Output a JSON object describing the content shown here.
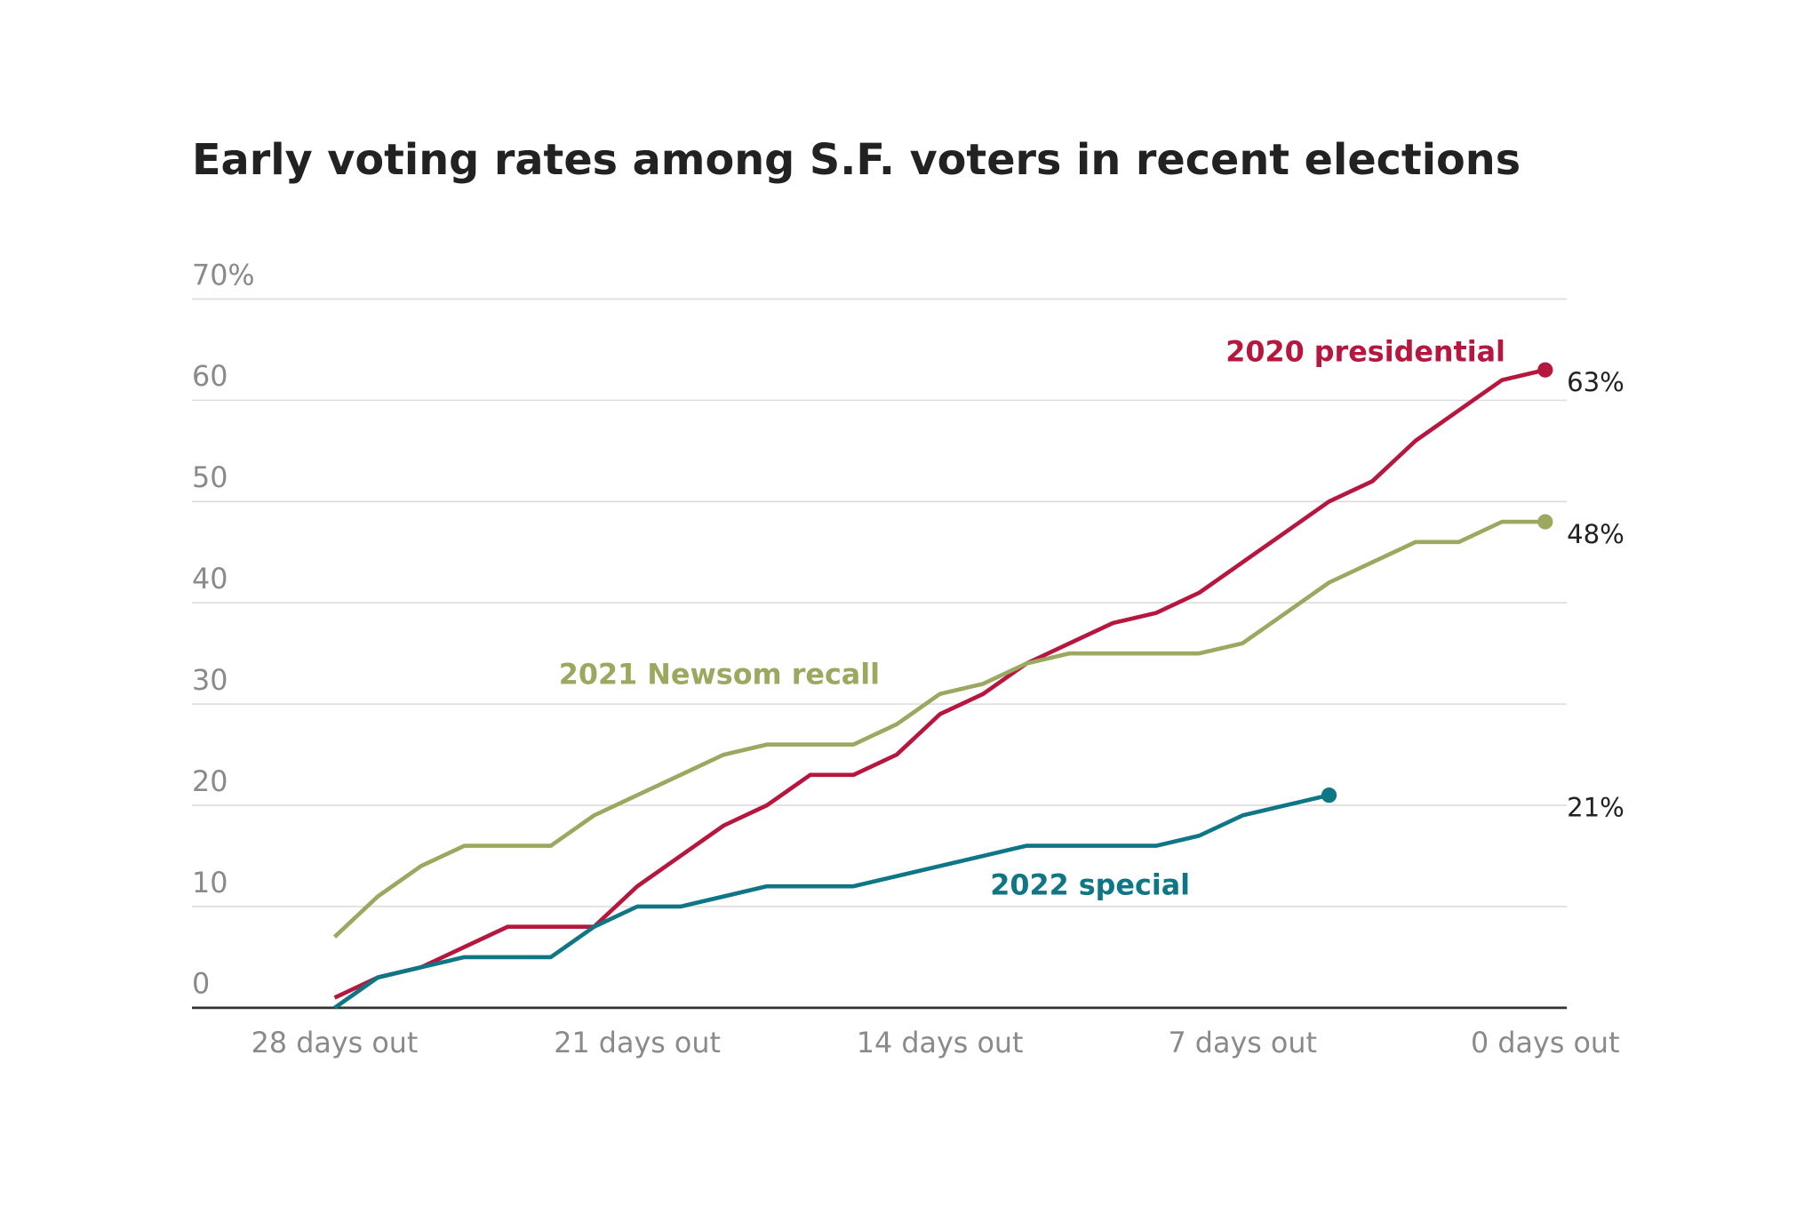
{
  "chart_data": {
    "type": "line",
    "title": "Early voting rates among S.F. voters in recent elections",
    "x": [
      28,
      27,
      26,
      25,
      24,
      23,
      22,
      21,
      20,
      19,
      18,
      17,
      16,
      15,
      14,
      13,
      12,
      11,
      10,
      9,
      8,
      7,
      6,
      5,
      4,
      3,
      2,
      1,
      0
    ],
    "series": [
      {
        "name": "2020 presidential",
        "color": "#b5173f",
        "values": [
          1,
          3,
          4,
          6,
          8,
          8,
          8,
          12,
          15,
          18,
          20,
          23,
          23,
          25,
          29,
          31,
          34,
          36,
          38,
          39,
          41,
          44,
          47,
          50,
          52,
          56,
          59,
          62,
          63
        ],
        "value_labels": [
          null,
          null,
          null,
          null,
          null,
          null,
          null,
          null,
          null,
          null,
          null,
          null,
          null,
          null,
          null,
          null,
          null,
          null,
          null,
          null,
          null,
          null,
          null,
          null,
          null,
          null,
          null,
          null,
          "63%"
        ]
      },
      {
        "name": "2021 Newsom recall",
        "color": "#9aa860",
        "values": [
          7,
          11,
          14,
          16,
          16,
          16,
          19,
          21,
          23,
          25,
          26,
          26,
          26,
          28,
          31,
          32,
          34,
          35,
          35,
          35,
          35,
          36,
          39,
          42,
          44,
          46,
          46,
          48,
          48
        ],
        "value_labels": [
          null,
          null,
          null,
          null,
          null,
          null,
          null,
          null,
          null,
          null,
          null,
          null,
          null,
          null,
          null,
          null,
          null,
          null,
          null,
          null,
          null,
          null,
          null,
          null,
          null,
          null,
          null,
          null,
          "48%"
        ]
      },
      {
        "name": "2022 special",
        "color": "#0e7684",
        "values": [
          0,
          3,
          4,
          5,
          5,
          5,
          8,
          10,
          10,
          11,
          12,
          12,
          12,
          13,
          14,
          15,
          16,
          16,
          16,
          16,
          17,
          19,
          20,
          21,
          null,
          null,
          null,
          null,
          null
        ],
        "value_labels": [
          null,
          null,
          null,
          null,
          null,
          null,
          null,
          null,
          null,
          null,
          null,
          null,
          null,
          null,
          null,
          null,
          null,
          null,
          null,
          null,
          null,
          null,
          null,
          "21%",
          null,
          null,
          null,
          null,
          null
        ]
      }
    ],
    "xlim": [
      31.3,
      -0.5
    ],
    "xticks": [
      {
        "value": 28,
        "label": "28 days out"
      },
      {
        "value": 21,
        "label": "21 days out"
      },
      {
        "value": 14,
        "label": "14 days out"
      },
      {
        "value": 7,
        "label": "7 days out"
      },
      {
        "value": 0,
        "label": "0 days out"
      }
    ],
    "ylim": [
      0,
      70
    ],
    "yticks": [
      0,
      10,
      20,
      30,
      40,
      50,
      60,
      {
        "value": 70,
        "label": "70%"
      }
    ],
    "grid": true
  }
}
